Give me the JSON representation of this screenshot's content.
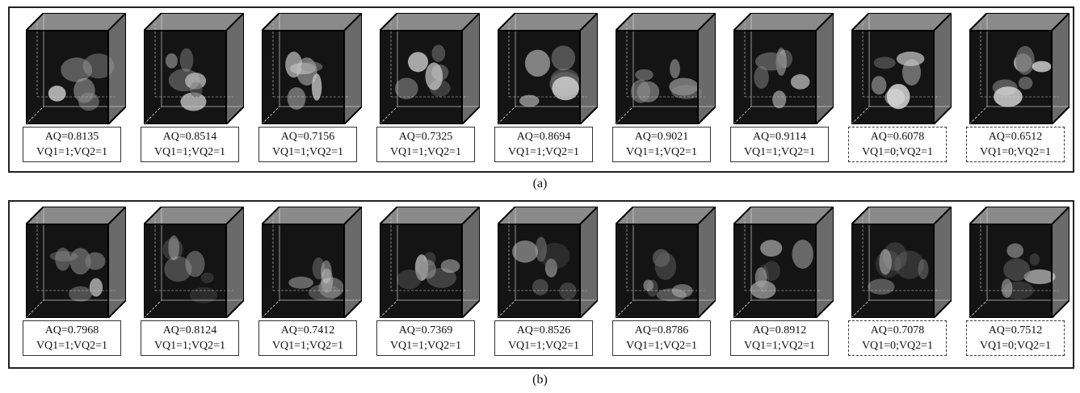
{
  "panels": [
    {
      "label": "(a)",
      "items": [
        {
          "aq": "AQ=0.8135",
          "vq": "VQ1=1;VQ2=1",
          "flag": false
        },
        {
          "aq": "AQ=0.8514",
          "vq": "VQ1=1;VQ2=1",
          "flag": false
        },
        {
          "aq": "AQ=0.7156",
          "vq": "VQ1=1;VQ2=1",
          "flag": false
        },
        {
          "aq": "AQ=0.7325",
          "vq": "VQ1=1;VQ2=1",
          "flag": false
        },
        {
          "aq": "AQ=0.8694",
          "vq": "VQ1=1;VQ2=1",
          "flag": false
        },
        {
          "aq": "AQ=0.9021",
          "vq": "VQ1=1;VQ2=1",
          "flag": false
        },
        {
          "aq": "AQ=0.9114",
          "vq": "VQ1=1;VQ2=1",
          "flag": false
        },
        {
          "aq": "AQ=0.6078",
          "vq": "VQ1=0;VQ2=1",
          "flag": true
        },
        {
          "aq": "AQ=0.6512",
          "vq": "VQ1=0;VQ2=1",
          "flag": true
        }
      ]
    },
    {
      "label": "(b)",
      "items": [
        {
          "aq": "AQ=0.7968",
          "vq": "VQ1=1;VQ2=1",
          "flag": false
        },
        {
          "aq": "AQ=0.8124",
          "vq": "VQ1=1;VQ2=1",
          "flag": false
        },
        {
          "aq": "AQ=0.7412",
          "vq": "VQ1=1;VQ2=1",
          "flag": false
        },
        {
          "aq": "AQ=0.7369",
          "vq": "VQ1=1;VQ2=1",
          "flag": false
        },
        {
          "aq": "AQ=0.8526",
          "vq": "VQ1=1;VQ2=1",
          "flag": false
        },
        {
          "aq": "AQ=0.8786",
          "vq": "VQ1=1;VQ2=1",
          "flag": false
        },
        {
          "aq": "AQ=0.8912",
          "vq": "VQ1=1;VQ2=1",
          "flag": false
        },
        {
          "aq": "AQ=0.7078",
          "vq": "VQ1=0;VQ2=1",
          "flag": true
        },
        {
          "aq": "AQ=0.7512",
          "vq": "VQ1=0;VQ2=1",
          "flag": true
        }
      ]
    }
  ]
}
